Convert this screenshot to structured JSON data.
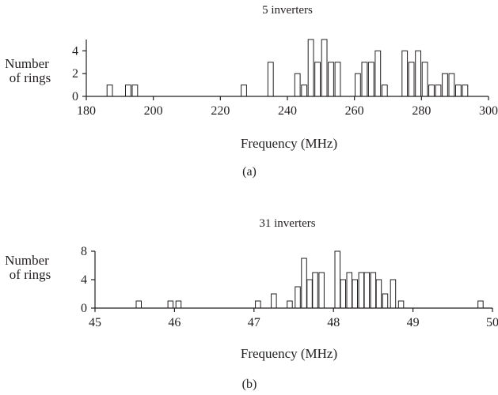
{
  "chart_data": [
    {
      "type": "bar",
      "title": "5 inverters",
      "xlabel": "Frequency (MHz)",
      "ylabel_lines": [
        "Number",
        "of rings"
      ],
      "caption": "(a)",
      "xlim": [
        180,
        300
      ],
      "ylim": [
        0,
        5
      ],
      "xticks": [
        "180",
        "200",
        "220",
        "240",
        "260",
        "280",
        "300"
      ],
      "yticks": [
        "0",
        "2",
        "4"
      ],
      "bin_width": 1.6,
      "bins": [
        {
          "x": 187.0,
          "count": 1
        },
        {
          "x": 192.5,
          "count": 1
        },
        {
          "x": 194.5,
          "count": 1
        },
        {
          "x": 227.0,
          "count": 1
        },
        {
          "x": 235.0,
          "count": 3
        },
        {
          "x": 243.0,
          "count": 2
        },
        {
          "x": 245.0,
          "count": 1
        },
        {
          "x": 247.0,
          "count": 5
        },
        {
          "x": 249.0,
          "count": 3
        },
        {
          "x": 251.0,
          "count": 5
        },
        {
          "x": 253.0,
          "count": 3
        },
        {
          "x": 255.0,
          "count": 3
        },
        {
          "x": 261.0,
          "count": 2
        },
        {
          "x": 263.0,
          "count": 3
        },
        {
          "x": 265.0,
          "count": 3
        },
        {
          "x": 267.0,
          "count": 4
        },
        {
          "x": 269.0,
          "count": 1
        },
        {
          "x": 275.0,
          "count": 4
        },
        {
          "x": 277.0,
          "count": 3
        },
        {
          "x": 279.0,
          "count": 4
        },
        {
          "x": 281.0,
          "count": 3
        },
        {
          "x": 283.0,
          "count": 1
        },
        {
          "x": 285.0,
          "count": 1
        },
        {
          "x": 287.0,
          "count": 2
        },
        {
          "x": 289.0,
          "count": 2
        },
        {
          "x": 291.0,
          "count": 1
        },
        {
          "x": 293.0,
          "count": 1
        }
      ]
    },
    {
      "type": "bar",
      "title": "31 inverters",
      "xlabel": "Frequency (MHz)",
      "ylabel_lines": [
        "Number",
        "of rings"
      ],
      "caption": "(b)",
      "xlim": [
        45,
        50
      ],
      "ylim": [
        0,
        8
      ],
      "xticks": [
        "45",
        "46",
        "47",
        "48",
        "49",
        "50"
      ],
      "yticks": [
        "0",
        "4",
        "8"
      ],
      "bin_width": 0.065,
      "bins": [
        {
          "x": 45.55,
          "count": 1
        },
        {
          "x": 45.95,
          "count": 1
        },
        {
          "x": 46.05,
          "count": 1
        },
        {
          "x": 47.05,
          "count": 1
        },
        {
          "x": 47.25,
          "count": 2
        },
        {
          "x": 47.45,
          "count": 1
        },
        {
          "x": 47.55,
          "count": 3
        },
        {
          "x": 47.63,
          "count": 7
        },
        {
          "x": 47.7,
          "count": 4
        },
        {
          "x": 47.77,
          "count": 5
        },
        {
          "x": 47.85,
          "count": 5
        },
        {
          "x": 48.05,
          "count": 8
        },
        {
          "x": 48.12,
          "count": 4
        },
        {
          "x": 48.2,
          "count": 5
        },
        {
          "x": 48.27,
          "count": 4
        },
        {
          "x": 48.35,
          "count": 5
        },
        {
          "x": 48.42,
          "count": 5
        },
        {
          "x": 48.5,
          "count": 5
        },
        {
          "x": 48.57,
          "count": 4
        },
        {
          "x": 48.65,
          "count": 2
        },
        {
          "x": 48.75,
          "count": 4
        },
        {
          "x": 48.85,
          "count": 1
        },
        {
          "x": 49.85,
          "count": 1
        }
      ]
    }
  ]
}
